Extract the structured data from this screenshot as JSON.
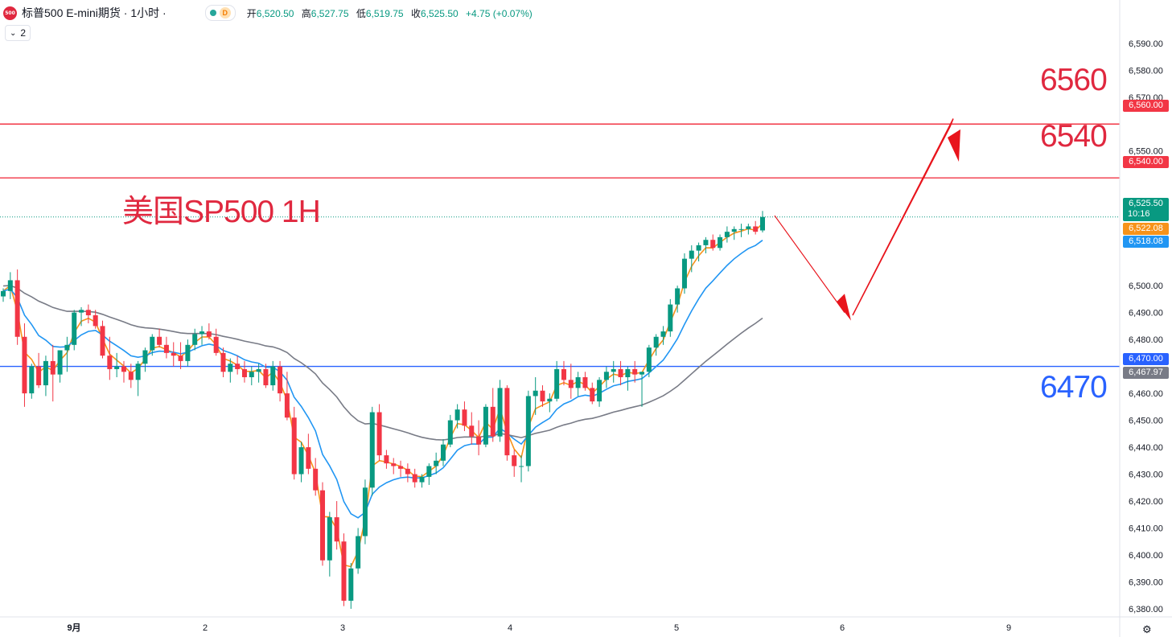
{
  "header": {
    "symbol_badge": "500",
    "title": "标普500 E-mini期货 · 1小时 ·",
    "status_d": "D",
    "ohlc": [
      {
        "k": "开",
        "v": "6,520.50"
      },
      {
        "k": "高",
        "v": "6,527.75"
      },
      {
        "k": "低",
        "v": "6,519.75"
      },
      {
        "k": "收",
        "v": "6,525.50"
      },
      {
        "k": "",
        "v": "+4.75 (+0.07%)"
      }
    ],
    "indicators_toggle": "2",
    "toggle_icon": "chevron-down-icon"
  },
  "annotations": {
    "title": "美国SP500 1H",
    "level_6560": "6560",
    "level_6540": "6540",
    "level_6470": "6470"
  },
  "price_tags": {
    "t6560": "6,560.00",
    "t6540": "6,540.00",
    "last_price": "6,525.50",
    "countdown": "10:16",
    "ma_orange": "6,522.08",
    "ma_blue": "6,518.08",
    "t6470": "6,470.00",
    "ma_gray": "6,467.97"
  },
  "colors": {
    "up": "#089981",
    "down": "#f23645",
    "red_line": "#f23645",
    "blue_line": "#2962ff",
    "ma_orange": "#f7931a",
    "ma_blue": "#2196f3",
    "ma_gray": "#787b86",
    "annotation_red": "#e0283f"
  },
  "chart_data": {
    "type": "candlestick",
    "y_axis_ticks": [
      6590,
      6580,
      6570,
      6560,
      6550,
      6540,
      6530,
      6520,
      6510,
      6500,
      6490,
      6480,
      6470,
      6460,
      6450,
      6440,
      6430,
      6420,
      6410,
      6400,
      6390,
      6380
    ],
    "y_axis_labels": [
      "6,590.00",
      "6,580.00",
      "6,570.00",
      "",
      "6,550.00",
      "",
      "6,530.00",
      "",
      "",
      "6,500.00",
      "6,490.00",
      "6,480.00",
      "",
      "6,460.00",
      "6,450.00",
      "6,440.00",
      "6,430.00",
      "6,420.00",
      "6,410.00",
      "6,400.00",
      "6,390.00",
      "6,380.00"
    ],
    "ylim": [
      6377,
      6598
    ],
    "x_labels": [
      "9月",
      "2",
      "3",
      "4",
      "5",
      "6",
      "9"
    ],
    "horizontal_levels": [
      {
        "value": 6560,
        "color": "red"
      },
      {
        "value": 6540,
        "color": "red"
      },
      {
        "value": 6470,
        "color": "blue"
      }
    ],
    "last_price": 6525.5,
    "candles": [
      [
        6496,
        6499,
        6494,
        6498
      ],
      [
        6498,
        6505,
        6495,
        6502
      ],
      [
        6502,
        6506,
        6478,
        6481
      ],
      [
        6481,
        6486,
        6455,
        6460
      ],
      [
        6460,
        6471,
        6458,
        6470
      ],
      [
        6470,
        6475,
        6462,
        6463
      ],
      [
        6463,
        6474,
        6459,
        6472
      ],
      [
        6472,
        6478,
        6457,
        6467
      ],
      [
        6467,
        6476,
        6464,
        6476
      ],
      [
        6476,
        6481,
        6468,
        6478
      ],
      [
        6478,
        6491,
        6476,
        6490
      ],
      [
        6490,
        6492,
        6485,
        6491
      ],
      [
        6491,
        6493,
        6486,
        6489
      ],
      [
        6489,
        6491,
        6484,
        6485
      ],
      [
        6485,
        6487,
        6473,
        6474
      ],
      [
        6474,
        6481,
        6465,
        6469
      ],
      [
        6469,
        6475,
        6466,
        6470
      ],
      [
        6470,
        6472,
        6464,
        6468
      ],
      [
        6468,
        6471,
        6462,
        6465
      ],
      [
        6465,
        6472,
        6459,
        6471
      ],
      [
        6471,
        6477,
        6468,
        6476
      ],
      [
        6476,
        6482,
        6474,
        6481
      ],
      [
        6481,
        6484,
        6477,
        6478
      ],
      [
        6478,
        6481,
        6473,
        6475
      ],
      [
        6475,
        6479,
        6470,
        6474
      ],
      [
        6474,
        6479,
        6469,
        6472
      ],
      [
        6472,
        6480,
        6470,
        6478
      ],
      [
        6478,
        6484,
        6476,
        6482
      ],
      [
        6482,
        6485,
        6478,
        6483
      ],
      [
        6483,
        6486,
        6480,
        6481
      ],
      [
        6481,
        6484,
        6474,
        6475
      ],
      [
        6475,
        6477,
        6466,
        6468
      ],
      [
        6468,
        6473,
        6464,
        6471
      ],
      [
        6471,
        6474,
        6467,
        6469
      ],
      [
        6469,
        6472,
        6464,
        6466
      ],
      [
        6466,
        6470,
        6463,
        6468
      ],
      [
        6468,
        6471,
        6464,
        6469
      ],
      [
        6469,
        6471,
        6462,
        6463
      ],
      [
        6463,
        6472,
        6461,
        6470
      ],
      [
        6470,
        6472,
        6457,
        6460
      ],
      [
        6460,
        6468,
        6450,
        6451
      ],
      [
        6451,
        6455,
        6428,
        6430
      ],
      [
        6430,
        6442,
        6427,
        6440
      ],
      [
        6440,
        6445,
        6430,
        6432
      ],
      [
        6432,
        6436,
        6422,
        6424
      ],
      [
        6424,
        6427,
        6396,
        6398
      ],
      [
        6398,
        6416,
        6392,
        6414
      ],
      [
        6414,
        6420,
        6402,
        6405
      ],
      [
        6405,
        6408,
        6381,
        6383
      ],
      [
        6383,
        6397,
        6380,
        6395
      ],
      [
        6395,
        6410,
        6393,
        6407
      ],
      [
        6407,
        6428,
        6404,
        6425
      ],
      [
        6425,
        6455,
        6422,
        6453
      ],
      [
        6453,
        6456,
        6435,
        6437
      ],
      [
        6437,
        6439,
        6432,
        6434
      ],
      [
        6434,
        6436,
        6430,
        6433
      ],
      [
        6433,
        6435,
        6429,
        6432
      ],
      [
        6432,
        6434,
        6427,
        6430
      ],
      [
        6430,
        6432,
        6425,
        6427
      ],
      [
        6427,
        6430,
        6425,
        6429
      ],
      [
        6429,
        6434,
        6426,
        6433
      ],
      [
        6433,
        6438,
        6430,
        6435
      ],
      [
        6435,
        6443,
        6433,
        6441
      ],
      [
        6441,
        6452,
        6440,
        6450
      ],
      [
        6450,
        6456,
        6447,
        6454
      ],
      [
        6454,
        6457,
        6446,
        6448
      ],
      [
        6448,
        6453,
        6441,
        6444
      ],
      [
        6444,
        6450,
        6437,
        6441
      ],
      [
        6441,
        6456,
        6440,
        6455
      ],
      [
        6455,
        6462,
        6442,
        6444
      ],
      [
        6444,
        6465,
        6442,
        6462
      ],
      [
        6462,
        6463,
        6435,
        6437
      ],
      [
        6437,
        6439,
        6429,
        6433
      ],
      [
        6433,
        6437,
        6427,
        6433
      ],
      [
        6433,
        6461,
        6431,
        6459
      ],
      [
        6459,
        6466,
        6452,
        6461
      ],
      [
        6461,
        6463,
        6455,
        6457
      ],
      [
        6457,
        6460,
        6453,
        6458
      ],
      [
        6458,
        6472,
        6457,
        6469
      ],
      [
        6469,
        6472,
        6463,
        6465
      ],
      [
        6465,
        6471,
        6458,
        6462
      ],
      [
        6462,
        6468,
        6459,
        6466
      ],
      [
        6466,
        6468,
        6461,
        6462
      ],
      [
        6462,
        6464,
        6456,
        6457
      ],
      [
        6457,
        6466,
        6455,
        6465
      ],
      [
        6465,
        6470,
        6462,
        6468
      ],
      [
        6468,
        6472,
        6464,
        6469
      ],
      [
        6469,
        6472,
        6463,
        6466
      ],
      [
        6466,
        6470,
        6461,
        6469
      ],
      [
        6469,
        6472,
        6464,
        6467
      ],
      [
        6467,
        6468,
        6455,
        6468
      ],
      [
        6468,
        6478,
        6466,
        6477
      ],
      [
        6477,
        6482,
        6474,
        6481
      ],
      [
        6481,
        6485,
        6478,
        6483
      ],
      [
        6483,
        6495,
        6481,
        6493
      ],
      [
        6493,
        6500,
        6490,
        6499
      ],
      [
        6499,
        6512,
        6497,
        6510
      ],
      [
        6510,
        6515,
        6505,
        6513
      ],
      [
        6513,
        6516,
        6509,
        6515
      ],
      [
        6515,
        6518,
        6512,
        6517
      ],
      [
        6517,
        6519,
        6513,
        6514
      ],
      [
        6514,
        6519,
        6513,
        6518
      ],
      [
        6518,
        6522,
        6516,
        6520
      ],
      [
        6520,
        6522,
        6517,
        6521
      ],
      [
        6521,
        6523,
        6518,
        6521
      ],
      [
        6521,
        6523,
        6519,
        6522
      ],
      [
        6522,
        6524,
        6519,
        6520
      ],
      [
        6520.5,
        6527.75,
        6519.75,
        6525.5
      ]
    ]
  }
}
